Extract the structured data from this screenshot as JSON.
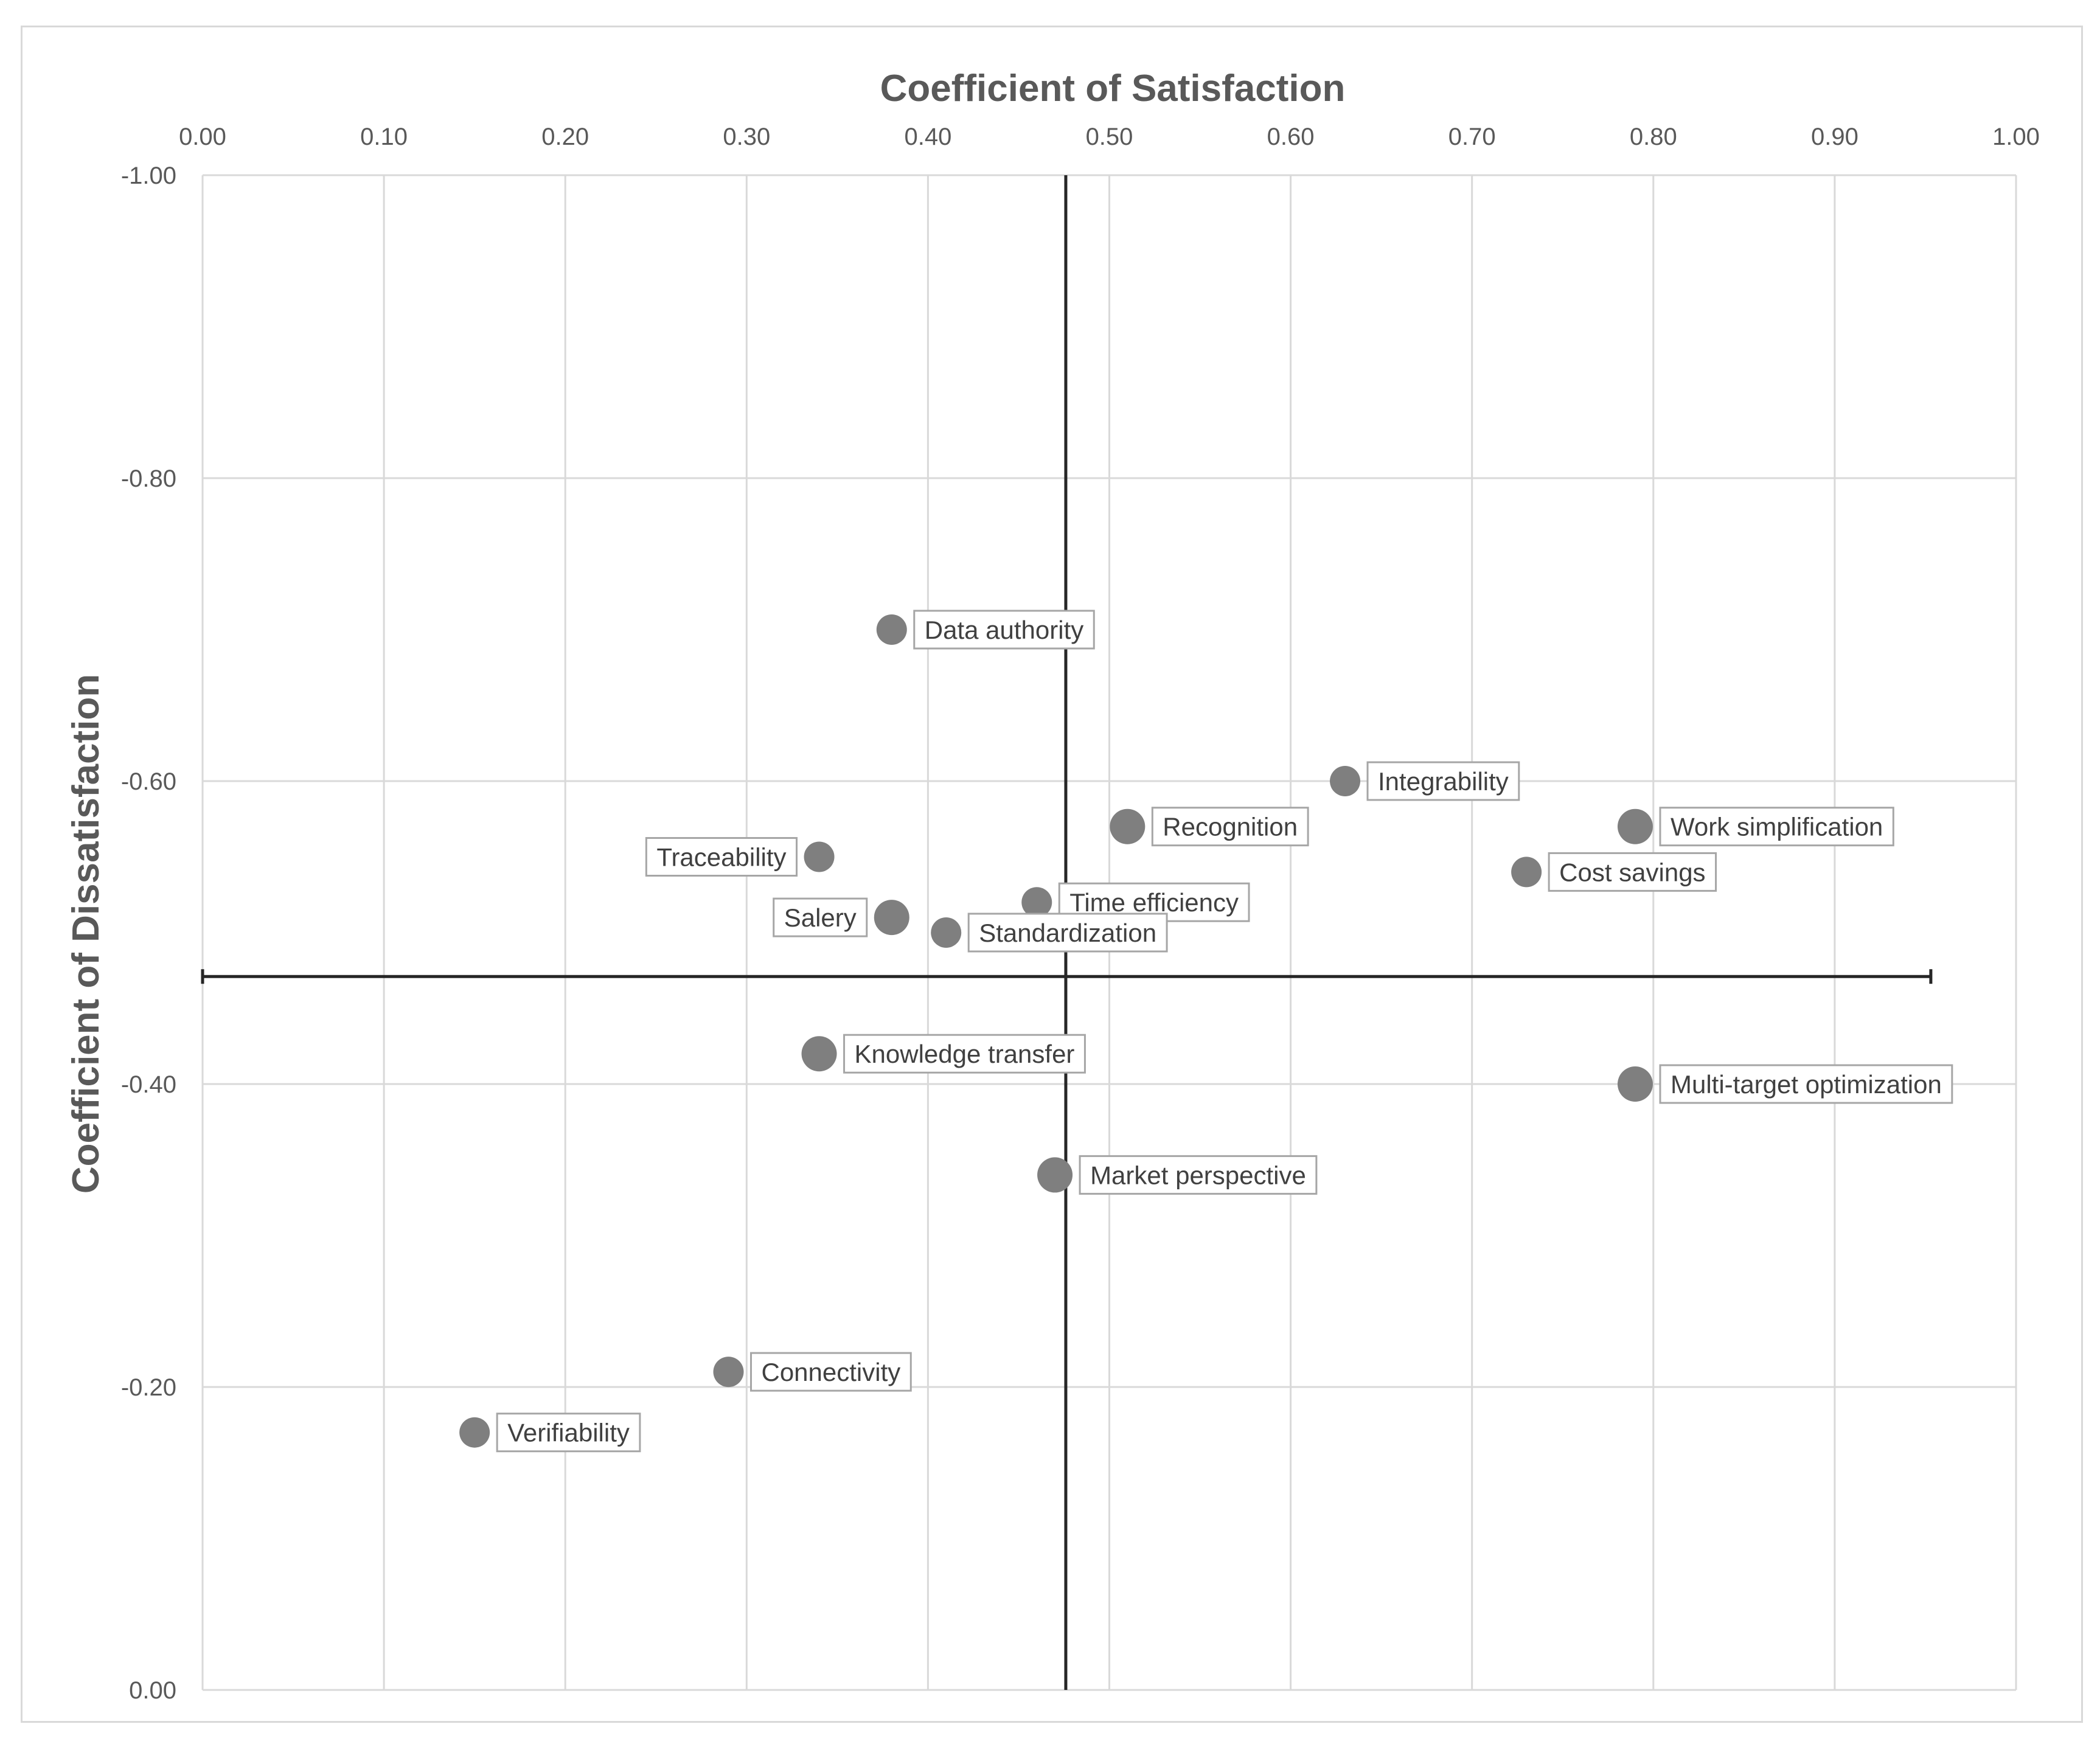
{
  "chart_data": {
    "type": "scatter",
    "title": "",
    "xlabel": "Coefficient of Satisfaction",
    "ylabel": "Coefficient  of Dissatisfaction",
    "xlim": [
      0,
      1
    ],
    "ylim": [
      -1,
      0
    ],
    "x_ticks": [
      "0.00",
      "0.10",
      "0.20",
      "0.30",
      "0.40",
      "0.50",
      "0.60",
      "0.70",
      "0.80",
      "0.90",
      "1.00"
    ],
    "y_ticks": [
      "-1.00",
      "-0.80",
      "-0.60",
      "-0.40",
      "-0.20",
      "0.00"
    ],
    "grid": true,
    "reference_lines": {
      "x": 0.476,
      "y": -0.471,
      "x_line_end": 0.953
    },
    "points": [
      {
        "label": "Data authority",
        "x": 0.38,
        "y": -0.7,
        "size": "small",
        "label_side": "right"
      },
      {
        "label": "Integrability",
        "x": 0.63,
        "y": -0.6,
        "size": "small",
        "label_side": "right"
      },
      {
        "label": "Recognition",
        "x": 0.51,
        "y": -0.57,
        "size": "large",
        "label_side": "right"
      },
      {
        "label": "Work simplification",
        "x": 0.79,
        "y": -0.57,
        "size": "large",
        "label_side": "right"
      },
      {
        "label": "Traceability",
        "x": 0.34,
        "y": -0.55,
        "size": "small",
        "label_side": "left"
      },
      {
        "label": "Cost savings",
        "x": 0.73,
        "y": -0.54,
        "size": "small",
        "label_side": "right"
      },
      {
        "label": "Time efficiency",
        "x": 0.46,
        "y": -0.52,
        "size": "small",
        "label_side": "right"
      },
      {
        "label": "Salery",
        "x": 0.38,
        "y": -0.51,
        "size": "large",
        "label_side": "left"
      },
      {
        "label": "Standardization",
        "x": 0.41,
        "y": -0.5,
        "size": "small",
        "label_side": "right"
      },
      {
        "label": "Knowledge transfer",
        "x": 0.34,
        "y": -0.42,
        "size": "large",
        "label_side": "right"
      },
      {
        "label": "Multi-target optimization",
        "x": 0.79,
        "y": -0.4,
        "size": "large",
        "label_side": "right"
      },
      {
        "label": "Market perspective",
        "x": 0.47,
        "y": -0.34,
        "size": "large",
        "label_side": "right"
      },
      {
        "label": "Connectivity",
        "x": 0.29,
        "y": -0.21,
        "size": "small",
        "label_side": "right"
      },
      {
        "label": "Verifiability",
        "x": 0.15,
        "y": -0.17,
        "size": "small",
        "label_side": "right"
      }
    ],
    "colors": {
      "marker": "#7f7f7f",
      "grid": "#d9d9d9",
      "axis": "#262626",
      "text": "#595959"
    }
  }
}
